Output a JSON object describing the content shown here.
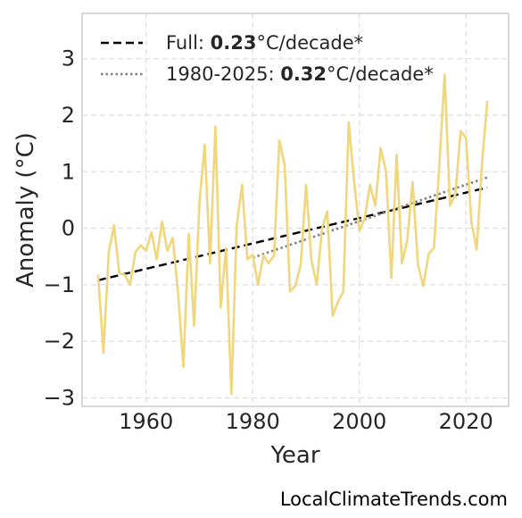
{
  "chart_data": {
    "type": "line",
    "xlabel": "Year",
    "ylabel": "Anomaly (°C)",
    "xlim": [
      1948,
      2028
    ],
    "ylim": [
      -3.15,
      3.8
    ],
    "xticks": [
      1960,
      1980,
      2000,
      2020
    ],
    "yticks": [
      -3,
      -2,
      -1,
      0,
      1,
      2,
      3
    ],
    "ytick_labels": [
      "−3",
      "−2",
      "−1",
      "0",
      "1",
      "2",
      "3"
    ],
    "grid": true,
    "legend_position": "top-left",
    "series": [
      {
        "color": "#f0d67c",
        "x": [
          1951,
          1952,
          1953,
          1954,
          1955,
          1956,
          1957,
          1958,
          1959,
          1960,
          1961,
          1962,
          1963,
          1964,
          1965,
          1966,
          1967,
          1968,
          1969,
          1970,
          1971,
          1972,
          1973,
          1974,
          1975,
          1976,
          1977,
          1978,
          1979,
          1980,
          1981,
          1982,
          1983,
          1984,
          1985,
          1986,
          1987,
          1988,
          1989,
          1990,
          1991,
          1992,
          1993,
          1994,
          1995,
          1996,
          1997,
          1998,
          1999,
          2000,
          2001,
          2002,
          2003,
          2004,
          2005,
          2006,
          2007,
          2008,
          2009,
          2010,
          2011,
          2012,
          2013,
          2014,
          2015,
          2016,
          2017,
          2018,
          2019,
          2020,
          2021,
          2022,
          2023,
          2024
        ],
        "values": [
          -0.82,
          -2.2,
          -0.42,
          0.05,
          -0.8,
          -0.82,
          -1.0,
          -0.42,
          -0.3,
          -0.4,
          -0.07,
          -0.55,
          0.12,
          -0.4,
          -0.17,
          -1.15,
          -2.45,
          -0.1,
          -1.72,
          0.45,
          1.48,
          -0.62,
          1.8,
          -1.4,
          -0.35,
          -2.93,
          0.05,
          0.77,
          -0.55,
          -0.47,
          -1.0,
          -0.48,
          -0.62,
          -0.48,
          1.55,
          1.12,
          -1.12,
          -1.02,
          -0.65,
          0.77,
          -0.55,
          -1.0,
          0.0,
          0.3,
          -1.55,
          -1.3,
          -1.12,
          1.87,
          0.85,
          -0.05,
          0.17,
          0.77,
          0.4,
          1.42,
          1.0,
          -0.88,
          1.3,
          -0.62,
          -0.2,
          0.82,
          -0.65,
          -1.02,
          -0.45,
          -0.35,
          1.1,
          2.72,
          0.4,
          0.6,
          1.72,
          1.6,
          0.12,
          -0.38,
          1.12,
          2.25
        ]
      }
    ],
    "trendlines": [
      {
        "name": "Full",
        "rate": "0.23",
        "unit": "°C/decade*",
        "style": "dashed",
        "color": "#000000",
        "x": [
          1951,
          2024
        ],
        "values": [
          -0.92,
          0.72
        ]
      },
      {
        "name": "1980-2025",
        "rate": "0.32",
        "unit": "°C/decade*",
        "style": "dotted",
        "color": "#808080",
        "x": [
          1980,
          2024
        ],
        "values": [
          -0.52,
          0.9
        ]
      }
    ]
  },
  "footer": "LocalClimateTrends.com"
}
